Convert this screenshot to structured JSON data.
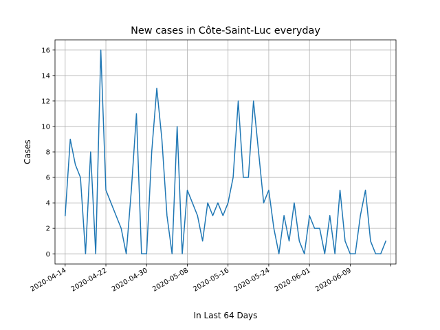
{
  "chart_data": {
    "type": "line",
    "title": "New cases in Côte-Saint-Luc everyday",
    "xlabel": "In Last 64 Days",
    "ylabel": "Cases",
    "grid": true,
    "line_color": "#1f77b4",
    "x_start": "2020-04-14",
    "x_end": "2020-06-16",
    "xlim": [
      "2020-04-12",
      "2020-06-18"
    ],
    "ylim": [
      -0.8,
      16.8
    ],
    "x_ticks": [
      "2020-04-14",
      "2020-04-22",
      "2020-04-30",
      "2020-05-08",
      "2020-05-16",
      "2020-05-24",
      "2020-06-01",
      "2020-06-09",
      "2020-06-17"
    ],
    "x_tick_labels": [
      "2020-04-14",
      "2020-04-22",
      "2020-04-30",
      "2020-05-08",
      "2020-05-16",
      "2020-05-24",
      "2020-06-01",
      "2020-06-09",
      ""
    ],
    "y_ticks": [
      0,
      2,
      4,
      6,
      8,
      10,
      12,
      14,
      16
    ],
    "series": [
      {
        "values": [
          3,
          9,
          7,
          6,
          0,
          8,
          0,
          16,
          5,
          4,
          3,
          2,
          0,
          5,
          11,
          0,
          0,
          8,
          13,
          9,
          3,
          0,
          10,
          0,
          5,
          4,
          3,
          1,
          4,
          3,
          4,
          3,
          4,
          6,
          12,
          6,
          6,
          12,
          8,
          4,
          5,
          2,
          0,
          3,
          1,
          4,
          1,
          0,
          3,
          2,
          2,
          0,
          3,
          0,
          5,
          1,
          0,
          0,
          3,
          5,
          1,
          0,
          0,
          1
        ]
      }
    ]
  }
}
